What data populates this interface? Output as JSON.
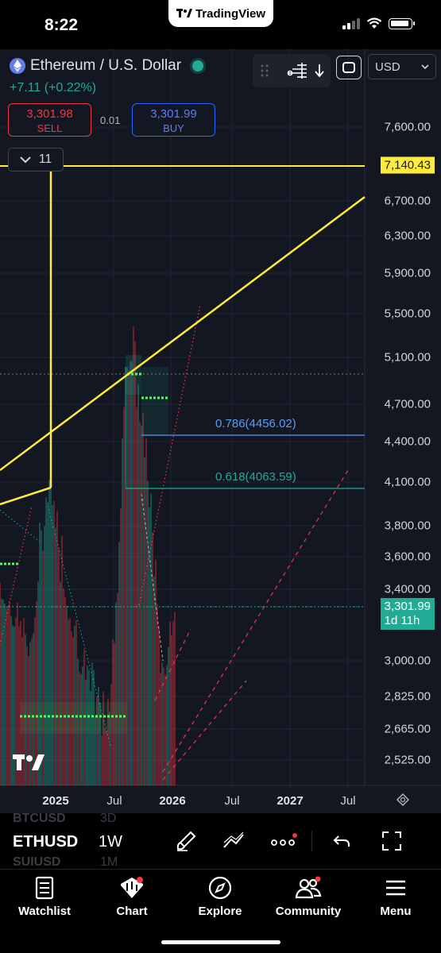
{
  "status_bar": {
    "time": "8:22",
    "app_pill": "TradingView"
  },
  "symbol": {
    "title": "Ethereum / U.S. Dollar",
    "change": "+7.11 (+0.22%)",
    "sell_price": "3,301.98",
    "sell_label": "SELL",
    "spread": "0.01",
    "buy_price": "3,301.99",
    "buy_label": "BUY",
    "indicators_count": "11"
  },
  "header": {
    "currency": "USD"
  },
  "price_axis": {
    "labels": [
      "7,600.00",
      "6,700.00",
      "6,300.00",
      "5,900.00",
      "5,500.00",
      "5,100.00",
      "4,700.00",
      "4,400.00",
      "4,100.00",
      "3,800.00",
      "3,600.00",
      "3,400.00",
      "3,000.00",
      "2,825.00",
      "2,665.00",
      "2,525.00"
    ],
    "alert_price": "7,140.43",
    "last_price": "3,301.99",
    "countdown": "1d 11h"
  },
  "fib": [
    {
      "label": "0.786(4456.02)",
      "color": "#5b9cf6"
    },
    {
      "label": "0.618(4063.59)",
      "color": "#22ab94"
    }
  ],
  "time_axis": {
    "labels": [
      "2025",
      "Jul",
      "2026",
      "Jul",
      "2027",
      "Jul"
    ]
  },
  "chart_data": {
    "type": "candlestick",
    "symbol": "ETHUSD",
    "interval": "1W",
    "y_scale": "log",
    "y_ticks": [
      7600,
      6700,
      6300,
      5900,
      5500,
      5100,
      4700,
      4400,
      4100,
      3800,
      3600,
      3400,
      3000,
      2825,
      2665,
      2525
    ],
    "x_ticks": [
      "2025",
      "Jul",
      "2026",
      "Jul",
      "2027",
      "Jul"
    ],
    "horizontal_lines": [
      {
        "price": 7140.43,
        "color": "#ffeb3b"
      },
      {
        "price": 4456.02,
        "color": "#5b9cf6",
        "label": "0.786(4456.02)"
      },
      {
        "price": 4063.59,
        "color": "#22ab94",
        "label": "0.618(4063.59)"
      }
    ],
    "last_price": 3301.99,
    "colors": {
      "up": "#22ab94",
      "down": "#f23645",
      "trendline": "#ffeb3b",
      "background": "#131722"
    }
  },
  "toolbar": {
    "ghost_symbols": [
      {
        "symbol": "BTCUSD",
        "interval": "3D"
      },
      {
        "symbol": "SUIUSD",
        "interval": "1M"
      }
    ],
    "symbol": "ETHUSD",
    "interval": "1W"
  },
  "nav": {
    "items": [
      {
        "label": "Watchlist",
        "icon": "watchlist-icon"
      },
      {
        "label": "Chart",
        "icon": "chart-icon"
      },
      {
        "label": "Explore",
        "icon": "compass-icon"
      },
      {
        "label": "Community",
        "icon": "community-icon"
      },
      {
        "label": "Menu",
        "icon": "menu-icon"
      }
    ]
  }
}
